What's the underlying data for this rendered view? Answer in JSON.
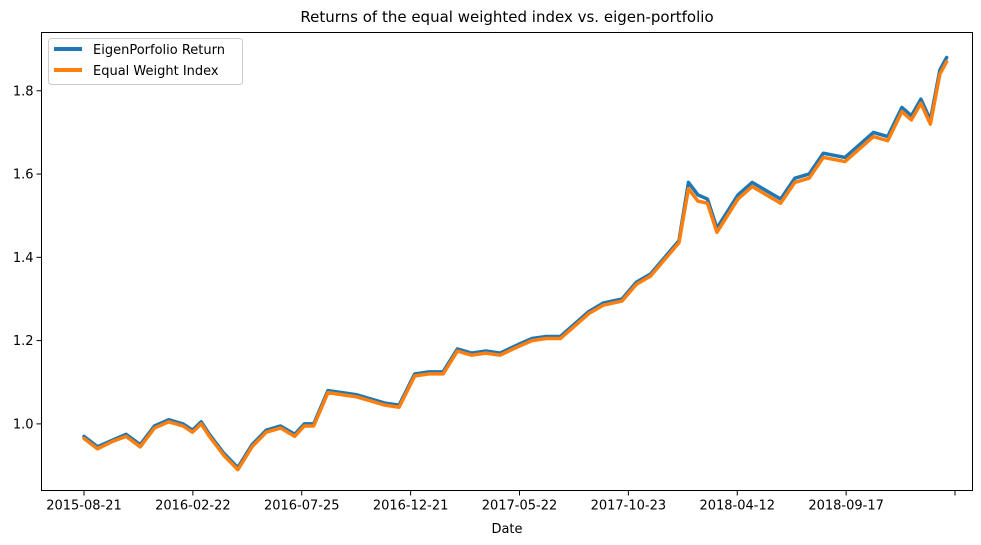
{
  "chart_data": {
    "type": "line",
    "title": "Returns of the equal weighted index vs. eigen-portfolio",
    "xlabel": "Date",
    "ylabel": "",
    "x_tick_labels": [
      "2015-08-21",
      "2016-02-22",
      "2016-07-25",
      "2016-12-21",
      "2017-05-22",
      "2017-10-23",
      "2018-04-12",
      "2018-09-17",
      ""
    ],
    "y_ticks": [
      1.0,
      1.2,
      1.4,
      1.6,
      1.8
    ],
    "y_tick_labels": [
      "1.0",
      "1.2",
      "1.4",
      "1.6",
      "1.8"
    ],
    "ylim": [
      0.84,
      1.94
    ],
    "grid": false,
    "legend_position": "top-left",
    "x_points": [
      "2015-08-21",
      "2015-09-10",
      "2015-10-01",
      "2015-10-22",
      "2015-11-12",
      "2015-12-03",
      "2015-12-24",
      "2016-01-14",
      "2016-01-28",
      "2016-02-10",
      "2016-02-22",
      "2016-03-14",
      "2016-04-04",
      "2016-04-25",
      "2016-05-16",
      "2016-06-06",
      "2016-06-27",
      "2016-07-11",
      "2016-07-25",
      "2016-08-15",
      "2016-09-05",
      "2016-09-26",
      "2016-10-17",
      "2016-11-07",
      "2016-11-28",
      "2016-12-21",
      "2017-01-11",
      "2017-02-01",
      "2017-02-22",
      "2017-03-15",
      "2017-04-05",
      "2017-04-26",
      "2017-05-22",
      "2017-06-12",
      "2017-07-03",
      "2017-07-24",
      "2017-08-14",
      "2017-09-04",
      "2017-09-25",
      "2017-10-23",
      "2017-11-13",
      "2017-12-04",
      "2017-12-25",
      "2018-01-15",
      "2018-01-29",
      "2018-02-12",
      "2018-02-26",
      "2018-03-12",
      "2018-04-12",
      "2018-05-03",
      "2018-05-24",
      "2018-06-14",
      "2018-07-05",
      "2018-07-26",
      "2018-08-16",
      "2018-09-17",
      "2018-10-08",
      "2018-10-29",
      "2018-11-19",
      "2018-12-10",
      "2018-12-24",
      "2019-01-07",
      "2019-01-21",
      "2019-02-04",
      "2019-02-14"
    ],
    "series": [
      {
        "name": "EigenPorfolio Return",
        "color": "#1f77b4",
        "values": [
          0.97,
          0.945,
          0.96,
          0.975,
          0.95,
          0.995,
          1.01,
          1.0,
          0.985,
          1.005,
          0.975,
          0.93,
          0.895,
          0.95,
          0.985,
          0.995,
          0.975,
          1.0,
          1.0,
          1.08,
          1.075,
          1.07,
          1.06,
          1.05,
          1.045,
          1.12,
          1.125,
          1.125,
          1.18,
          1.17,
          1.175,
          1.17,
          1.19,
          1.205,
          1.21,
          1.21,
          1.24,
          1.27,
          1.29,
          1.3,
          1.34,
          1.36,
          1.4,
          1.44,
          1.58,
          1.55,
          1.54,
          1.47,
          1.55,
          1.58,
          1.56,
          1.54,
          1.59,
          1.6,
          1.65,
          1.64,
          1.67,
          1.7,
          1.69,
          1.76,
          1.74,
          1.78,
          1.73,
          1.85,
          1.88
        ]
      },
      {
        "name": "Equal Weight Index",
        "color": "#ff7f0e",
        "values": [
          0.965,
          0.94,
          0.957,
          0.97,
          0.945,
          0.99,
          1.005,
          0.995,
          0.98,
          1.0,
          0.97,
          0.925,
          0.89,
          0.945,
          0.98,
          0.99,
          0.97,
          0.995,
          0.995,
          1.075,
          1.07,
          1.065,
          1.055,
          1.045,
          1.04,
          1.115,
          1.12,
          1.12,
          1.175,
          1.165,
          1.17,
          1.165,
          1.185,
          1.2,
          1.205,
          1.205,
          1.235,
          1.265,
          1.285,
          1.295,
          1.335,
          1.355,
          1.395,
          1.435,
          1.565,
          1.535,
          1.53,
          1.46,
          1.54,
          1.57,
          1.55,
          1.53,
          1.58,
          1.59,
          1.64,
          1.63,
          1.66,
          1.69,
          1.68,
          1.75,
          1.73,
          1.77,
          1.72,
          1.84,
          1.87
        ]
      }
    ]
  }
}
